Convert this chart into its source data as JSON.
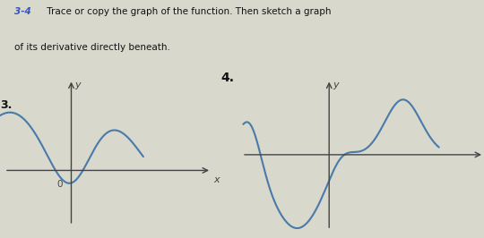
{
  "bg_color": "#d8d8cc",
  "curve_color": "#4a7aaa",
  "axis_color": "#444444",
  "text_color": "#111111",
  "header_bold": "3-4",
  "header_text": " Trace or copy the graph of the function. Then sketch a graph",
  "header_text2": "of its derivative directly beneath.",
  "label3": "3.",
  "label4": "4.",
  "fig_width": 5.4,
  "fig_height": 2.66
}
